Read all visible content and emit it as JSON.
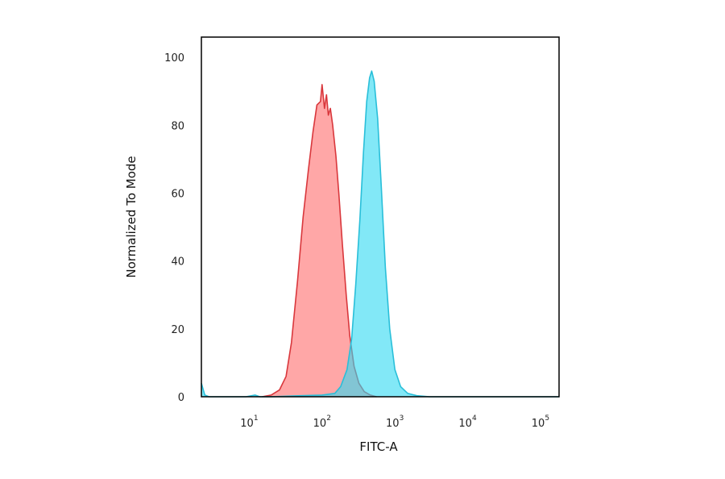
{
  "chart_data": {
    "type": "area",
    "xlabel": "FITC-A",
    "ylabel": "Normalized To Mode",
    "x_scale": "log",
    "xlim": [
      2.2,
      180000
    ],
    "ylim": [
      0,
      106
    ],
    "grid": false,
    "y_ticks": [
      {
        "value": 0,
        "label": "0"
      },
      {
        "value": 20,
        "label": "20"
      },
      {
        "value": 40,
        "label": "40"
      },
      {
        "value": 60,
        "label": "60"
      },
      {
        "value": 80,
        "label": "80"
      },
      {
        "value": 100,
        "label": "100"
      }
    ],
    "x_ticks": [
      {
        "value": 10,
        "base": "10",
        "exp": "1"
      },
      {
        "value": 100,
        "base": "10",
        "exp": "2"
      },
      {
        "value": 1000,
        "base": "10",
        "exp": "3"
      },
      {
        "value": 10000,
        "base": "10",
        "exp": "4"
      },
      {
        "value": 100000,
        "base": "10",
        "exp": "5"
      }
    ],
    "series": [
      {
        "stroke": "#d9373c",
        "fill": "#ff8a8a",
        "fill_opacity": 0.75,
        "points": [
          [
            15,
            0
          ],
          [
            20,
            0.5
          ],
          [
            26,
            2
          ],
          [
            32,
            6
          ],
          [
            38,
            16
          ],
          [
            46,
            34
          ],
          [
            55,
            53
          ],
          [
            65,
            67
          ],
          [
            75,
            78
          ],
          [
            85,
            86
          ],
          [
            95,
            87
          ],
          [
            100,
            92
          ],
          [
            108,
            85
          ],
          [
            115,
            89
          ],
          [
            122,
            83
          ],
          [
            130,
            85
          ],
          [
            140,
            80
          ],
          [
            155,
            71
          ],
          [
            170,
            60
          ],
          [
            190,
            45
          ],
          [
            215,
            30
          ],
          [
            240,
            18
          ],
          [
            275,
            9
          ],
          [
            320,
            4
          ],
          [
            380,
            1.5
          ],
          [
            460,
            0.5
          ],
          [
            560,
            0
          ]
        ]
      },
      {
        "stroke": "#29bfd9",
        "fill": "#2fd8f2",
        "fill_opacity": 0.6,
        "points": [
          [
            2.2,
            4
          ],
          [
            2.45,
            0.5
          ],
          [
            2.8,
            0
          ],
          [
            9,
            0
          ],
          [
            12,
            0.5
          ],
          [
            14,
            0
          ],
          [
            20,
            0
          ],
          [
            50,
            0.3
          ],
          [
            100,
            0.5
          ],
          [
            150,
            1
          ],
          [
            180,
            3
          ],
          [
            220,
            8
          ],
          [
            255,
            17
          ],
          [
            290,
            33
          ],
          [
            330,
            52
          ],
          [
            370,
            72
          ],
          [
            410,
            87
          ],
          [
            450,
            94
          ],
          [
            480,
            96
          ],
          [
            520,
            93
          ],
          [
            580,
            82
          ],
          [
            650,
            62
          ],
          [
            740,
            38
          ],
          [
            850,
            20
          ],
          [
            1000,
            8
          ],
          [
            1200,
            3
          ],
          [
            1500,
            1
          ],
          [
            2000,
            0.3
          ],
          [
            3000,
            0
          ],
          [
            180000,
            0
          ]
        ]
      }
    ]
  }
}
